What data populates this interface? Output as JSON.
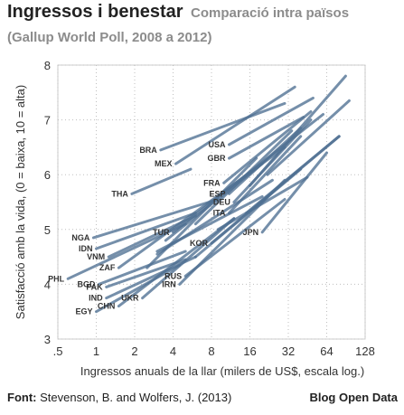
{
  "header": {
    "title": "Ingressos i benestar",
    "subtitle": "Comparació intra països",
    "subtitle2": "(Gallup World Poll, 2008 a 2012)"
  },
  "footer": {
    "font_label": "Font:",
    "source": "Stevenson, B. and Wolfers, J. (2013)",
    "brand": "Blog Open Data"
  },
  "chart_data": {
    "type": "line",
    "title": "Ingressos i benestar",
    "xlabel": "Ingressos anuals de la llar (milers de US$, escala log.)",
    "ylabel": "Satisfacció amb la vida, (0 = baixa, 10 = alta)",
    "x_scale": "log2",
    "xlim": [
      0.5,
      128
    ],
    "ylim": [
      3.0,
      8.0
    ],
    "x_ticks": [
      0.5,
      1,
      2,
      4,
      8,
      16,
      32,
      64,
      128
    ],
    "x_tick_labels": [
      ".5",
      "1",
      "2",
      "4",
      "8",
      "16",
      "32",
      "64",
      "128"
    ],
    "y_ticks": [
      3,
      4,
      5,
      6,
      7,
      8
    ],
    "y_tick_labels": [
      "3",
      "4",
      "5",
      "6",
      "7",
      "8"
    ],
    "grid": true,
    "line_color": "#4e6f92",
    "series": [
      {
        "name": "BRA",
        "x": [
          3.2,
          30
        ],
        "y": [
          6.45,
          7.3
        ]
      },
      {
        "name": "USA",
        "x": [
          11,
          50
        ],
        "y": [
          6.55,
          7.4
        ]
      },
      {
        "name": "GBR",
        "x": [
          11,
          42
        ],
        "y": [
          6.3,
          7.05
        ]
      },
      {
        "name": "MEX",
        "x": [
          4.2,
          36
        ],
        "y": [
          6.2,
          7.6
        ]
      },
      {
        "name": "FRA",
        "x": [
          10,
          48
        ],
        "y": [
          5.85,
          7.15
        ]
      },
      {
        "name": "ESP",
        "x": [
          11,
          40
        ],
        "y": [
          5.65,
          6.85
        ]
      },
      {
        "name": "DEU",
        "x": [
          12,
          48
        ],
        "y": [
          5.5,
          7.0
        ]
      },
      {
        "name": "ITA",
        "x": [
          11,
          40
        ],
        "y": [
          5.3,
          6.7
        ]
      },
      {
        "name": "JPN",
        "x": [
          20,
          64
        ],
        "y": [
          4.95,
          6.4
        ]
      },
      {
        "name": "THA",
        "x": [
          1.9,
          5.5
        ],
        "y": [
          5.65,
          6.1
        ]
      },
      {
        "name": "NGA",
        "x": [
          0.95,
          9
        ],
        "y": [
          4.85,
          5.55
        ]
      },
      {
        "name": "IDN",
        "x": [
          1.0,
          6
        ],
        "y": [
          4.65,
          5.3
        ]
      },
      {
        "name": "VNM",
        "x": [
          1.25,
          6
        ],
        "y": [
          4.5,
          5.25
        ]
      },
      {
        "name": "ZAF",
        "x": [
          1.5,
          30
        ],
        "y": [
          4.3,
          6.5
        ]
      },
      {
        "name": "TUR",
        "x": [
          4,
          60
        ],
        "y": [
          4.95,
          7.1
        ]
      },
      {
        "name": "KOR",
        "x": [
          8,
          80
        ],
        "y": [
          4.75,
          6.7
        ]
      },
      {
        "name": "RUS",
        "x": [
          5,
          30
        ],
        "y": [
          4.15,
          5.55
        ]
      },
      {
        "name": "BGD",
        "x": [
          1.05,
          5
        ],
        "y": [
          4.0,
          4.6
        ]
      },
      {
        "name": "PAK",
        "x": [
          1.2,
          5
        ],
        "y": [
          3.95,
          4.45
        ]
      },
      {
        "name": "IND",
        "x": [
          1.2,
          6
        ],
        "y": [
          3.75,
          4.5
        ]
      },
      {
        "name": "PHL",
        "x": [
          0.6,
          5
        ],
        "y": [
          4.1,
          5.1
        ]
      },
      {
        "name": "CHN",
        "x": [
          1.5,
          12
        ],
        "y": [
          3.6,
          5.2
        ]
      },
      {
        "name": "EGY",
        "x": [
          1.0,
          4.5
        ],
        "y": [
          3.5,
          4.35
        ]
      },
      {
        "name": "UKR",
        "x": [
          2.3,
          12
        ],
        "y": [
          3.75,
          5.2
        ]
      },
      {
        "name": "IRN",
        "x": [
          4.5,
          30
        ],
        "y": [
          4.0,
          5.9
        ]
      },
      {
        "name": "",
        "x": [
          3,
          20
        ],
        "y": [
          4.6,
          5.6
        ]
      },
      {
        "name": "",
        "x": [
          6,
          40
        ],
        "y": [
          4.5,
          6.1
        ]
      },
      {
        "name": "",
        "x": [
          9,
          45
        ],
        "y": [
          5.0,
          5.95
        ]
      },
      {
        "name": "",
        "x": [
          16,
          90
        ],
        "y": [
          5.8,
          7.8
        ]
      },
      {
        "name": "",
        "x": [
          22,
          96
        ],
        "y": [
          6.0,
          7.35
        ]
      },
      {
        "name": "",
        "x": [
          6,
          34
        ],
        "y": [
          5.1,
          6.8
        ]
      },
      {
        "name": "",
        "x": [
          3.5,
          20
        ],
        "y": [
          4.8,
          6.2
        ]
      },
      {
        "name": "",
        "x": [
          15,
          80
        ],
        "y": [
          5.3,
          6.7
        ]
      },
      {
        "name": "",
        "x": [
          2.5,
          18
        ],
        "y": [
          4.3,
          6.3
        ]
      },
      {
        "name": "",
        "x": [
          3,
          24
        ],
        "y": [
          4.55,
          5.9
        ]
      }
    ]
  }
}
